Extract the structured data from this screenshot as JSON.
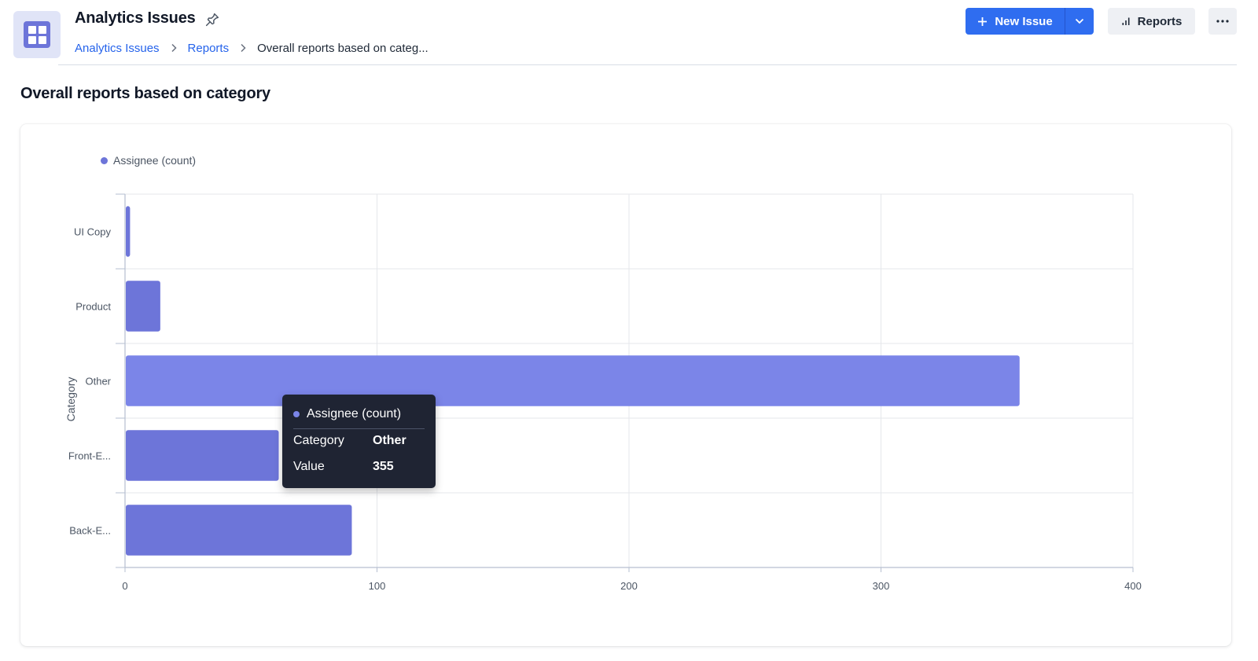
{
  "header": {
    "title": "Analytics Issues",
    "breadcrumb": [
      "Analytics Issues",
      "Reports",
      "Overall reports based on categ..."
    ],
    "new_issue_label": "New Issue",
    "reports_label": "Reports"
  },
  "page": {
    "title": "Overall reports based on category"
  },
  "icons": {
    "app": "grid-icon",
    "pin": "pin-icon",
    "breadcrumb_separator": "chevron-right-icon",
    "new_issue": "plus-icon",
    "dropdown": "chevron-down-icon",
    "reports": "bar-chart-icon",
    "more": "more-horizontal-icon"
  },
  "colors": {
    "accent": "#2f6df0",
    "bar": "#6d75d9",
    "bar_highlight": "#7b85e8",
    "tooltip_bg": "#1f2433"
  },
  "chart_data": {
    "type": "bar",
    "orientation": "horizontal",
    "categories": [
      "UI Copy",
      "Product",
      "Other",
      "Front-E...",
      "Back-E..."
    ],
    "series": [
      {
        "name": "Assignee (count)",
        "values": [
          2,
          14,
          355,
          61,
          90
        ]
      }
    ],
    "ylabel": "Category",
    "xlim": [
      0,
      400
    ],
    "xticks": [
      0,
      100,
      200,
      300,
      400
    ],
    "grid": true,
    "legend_position": "top-left",
    "highlighted_category": "Other"
  },
  "tooltip": {
    "series_name": "Assignee (count)",
    "category_label": "Category",
    "category_value": "Other",
    "value_label": "Value",
    "value": "355"
  }
}
